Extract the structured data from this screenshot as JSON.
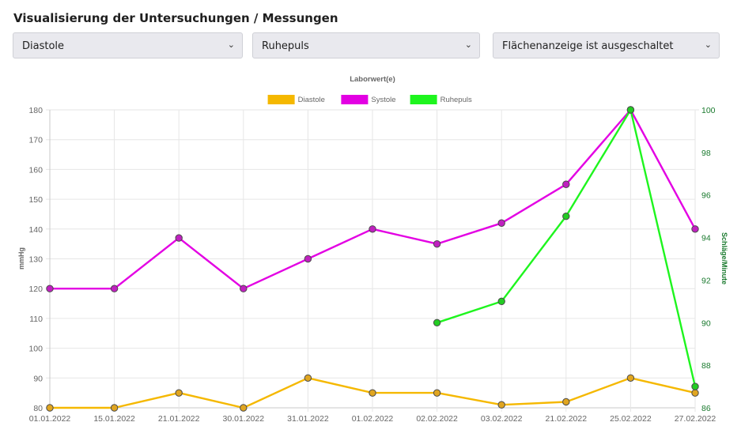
{
  "page": {
    "title": "Visualisierung der Untersuchungen / Messungen"
  },
  "filters": [
    {
      "value": "Diastole"
    },
    {
      "value": "Ruhepuls"
    },
    {
      "value": "Flächenanzeige ist ausgeschaltet"
    }
  ],
  "chart_data": {
    "type": "line",
    "title": "Laborwert(e)",
    "categories": [
      "01.01.2022",
      "15.01.2022",
      "21.01.2022",
      "30.01.2022",
      "31.01.2022",
      "01.02.2022",
      "02.02.2022",
      "03.02.2022",
      "21.02.2022",
      "25.02.2022",
      "27.02.2022"
    ],
    "ylabel": "mmHg",
    "ylim": [
      80,
      180
    ],
    "yticks": [
      80,
      90,
      100,
      110,
      120,
      130,
      140,
      150,
      160,
      170,
      180
    ],
    "y2label": "Schläge/Minute",
    "y2lim": [
      86,
      100
    ],
    "y2ticks": [
      86,
      88,
      90,
      92,
      94,
      96,
      98,
      100
    ],
    "grid": true,
    "legend_position": "top-center",
    "series": [
      {
        "name": "Diastole",
        "axis": "left",
        "color": "#f5b800",
        "point_color": "#e0a520",
        "values": [
          80,
          80,
          85,
          80,
          90,
          85,
          85,
          81,
          82,
          90,
          85
        ]
      },
      {
        "name": "Systole",
        "axis": "left",
        "color": "#e300e3",
        "point_color": "#c020c0",
        "values": [
          120,
          120,
          137,
          120,
          130,
          140,
          135,
          142,
          155,
          180,
          140
        ]
      },
      {
        "name": "Ruhepuls",
        "axis": "right",
        "color": "#1ef51e",
        "point_color": "#22cc22",
        "values": [
          null,
          null,
          null,
          null,
          null,
          null,
          90,
          91,
          95,
          100,
          87
        ]
      }
    ]
  }
}
